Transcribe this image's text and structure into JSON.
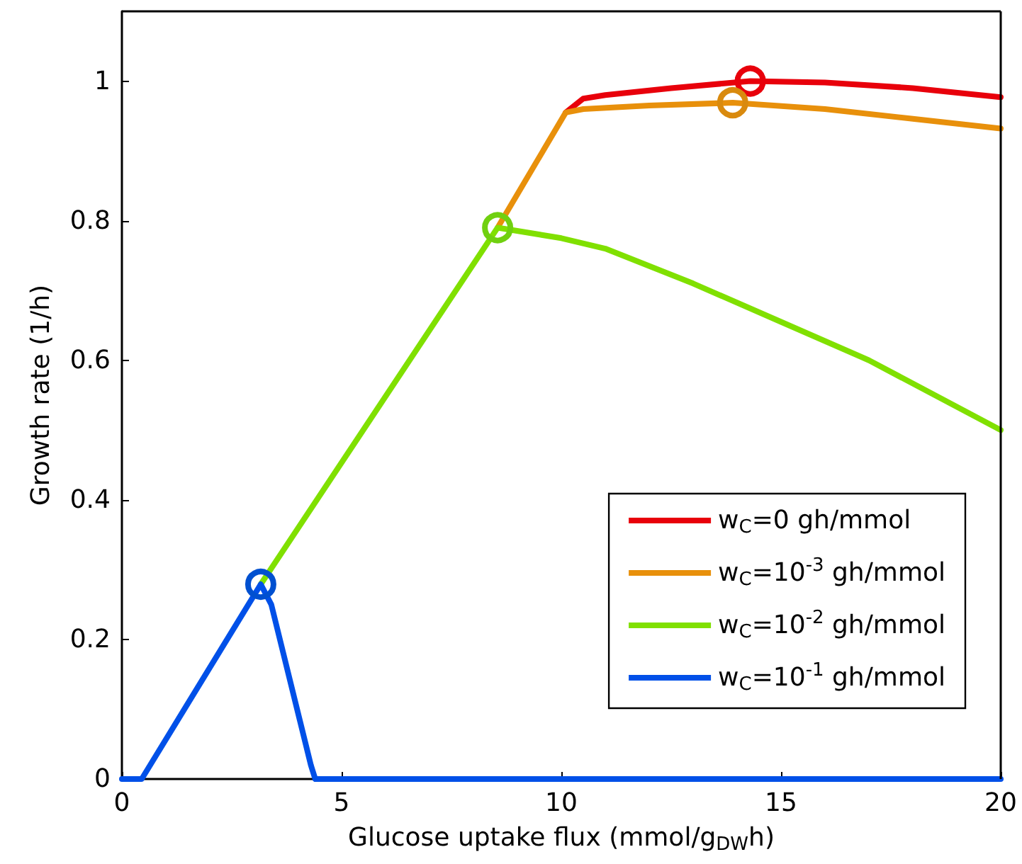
{
  "chart_data": {
    "type": "line",
    "xlabel": "Glucose uptake flux (mmol/g$_{DW}$h)",
    "ylabel": "Growth rate (1/h)",
    "xlim": [
      0,
      20
    ],
    "xticks": [
      0,
      5,
      10,
      15,
      20
    ],
    "ylim": [
      0,
      1.1
    ],
    "yticks": [
      0,
      0.2,
      0.4,
      0.6,
      0.8,
      1
    ],
    "grid": false,
    "legend": "bottom right",
    "line_style": "solid",
    "marker": "none",
    "series": [
      {
        "name": "w$_{C}$=0 gh/mmol",
        "color": "#e8000b",
        "x": [
          10.1,
          10.5,
          11,
          12.5,
          14.3,
          16,
          18,
          20
        ],
        "values": [
          0.955,
          0.975,
          0.98,
          0.99,
          1.0,
          0.998,
          0.99,
          0.977
        ]
      },
      {
        "name": "w$_{C}$=10$^{-3}$ gh/mmol",
        "color": "#e8900b",
        "x": [
          8.55,
          10.1,
          10.5,
          12,
          13.9,
          16,
          18,
          20
        ],
        "values": [
          0.79,
          0.955,
          0.96,
          0.965,
          0.969,
          0.96,
          0.946,
          0.932
        ]
      },
      {
        "name": "w$_{C}$=10$^{-2}$ gh/mmol",
        "color": "#80e000",
        "x": [
          3.16,
          8.55,
          10,
          11,
          13,
          15,
          17,
          20
        ],
        "values": [
          0.279,
          0.79,
          0.775,
          0.76,
          0.71,
          0.655,
          0.6,
          0.5
        ]
      },
      {
        "name": "w$_{C}$=10$^{-1}$ gh/mmol",
        "color": "#0050e8",
        "x": [
          0,
          0.45,
          3.16,
          3.4,
          4.3,
          4.4,
          20
        ],
        "values": [
          0,
          0,
          0.279,
          0.25,
          0.02,
          0,
          0
        ]
      },
      {
        "type": "scatter",
        "marker": "circle",
        "color": "#e8000b",
        "x": [
          14.3
        ],
        "values": [
          1.0
        ]
      },
      {
        "type": "scatter",
        "marker": "circle",
        "color": "#d98a0e",
        "x": [
          13.9
        ],
        "values": [
          0.969
        ]
      },
      {
        "type": "scatter",
        "marker": "circle",
        "color": "#70d010",
        "x": [
          8.55
        ],
        "values": [
          0.79
        ]
      },
      {
        "type": "scatter",
        "marker": "circle",
        "color": "#0050d0",
        "x": [
          3.16
        ],
        "values": [
          0.279
        ]
      }
    ]
  }
}
